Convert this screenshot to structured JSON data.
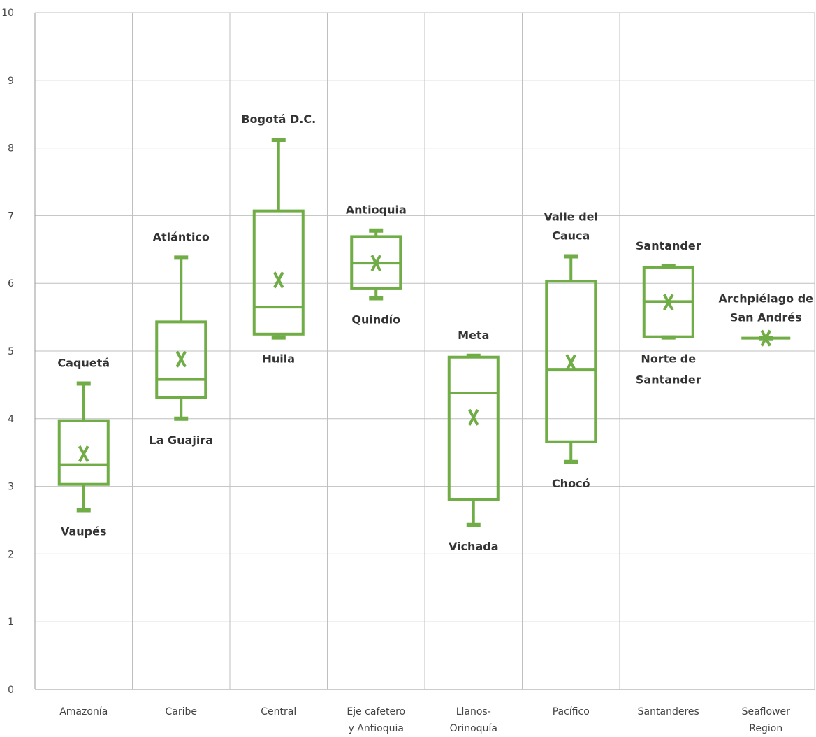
{
  "chart_data": {
    "type": "box",
    "color": "#70ad47",
    "grid_color": "#bfbfbf",
    "ylim": [
      0,
      10
    ],
    "y_ticks": [
      "0",
      "1",
      "2",
      "3",
      "4",
      "5",
      "6",
      "7",
      "8",
      "9",
      "10"
    ],
    "grid": true,
    "legend": "none",
    "categories": [
      [
        "Amazonía"
      ],
      [
        "Caribe"
      ],
      [
        "Central"
      ],
      [
        "Eje cafetero",
        "y Antioquia"
      ],
      [
        "Llanos-",
        "Orinoquía"
      ],
      [
        "Pacífico"
      ],
      [
        "Santanderes"
      ],
      [
        "Seaflower",
        "Region"
      ]
    ],
    "boxes": [
      {
        "min": 2.65,
        "q1": 3.03,
        "median": 3.32,
        "q3": 3.97,
        "max": 4.52,
        "mean": 3.48,
        "max_label": [
          "Caquetá"
        ],
        "min_label": [
          "Vaupés"
        ]
      },
      {
        "min": 4.0,
        "q1": 4.31,
        "median": 4.58,
        "q3": 5.43,
        "max": 6.38,
        "mean": 4.88,
        "max_label": [
          "Atlántico"
        ],
        "min_label": [
          "La Guajira"
        ]
      },
      {
        "min": 5.2,
        "q1": 5.25,
        "median": 5.65,
        "q3": 7.07,
        "max": 8.12,
        "mean": 6.05,
        "max_label": [
          "Bogotá D.C."
        ],
        "min_label": [
          "Huila"
        ]
      },
      {
        "min": 5.78,
        "q1": 5.92,
        "median": 6.3,
        "q3": 6.69,
        "max": 6.78,
        "mean": 6.3,
        "max_label": [
          "Antioquia"
        ],
        "min_label": [
          "Quindío"
        ]
      },
      {
        "min": 2.43,
        "q1": 2.81,
        "median": 4.38,
        "q3": 4.91,
        "max": 4.93,
        "mean": 4.02,
        "max_label": [
          "Meta"
        ],
        "min_label": [
          "Vichada"
        ]
      },
      {
        "min": 3.36,
        "q1": 3.66,
        "median": 4.72,
        "q3": 6.03,
        "max": 6.4,
        "mean": 4.83,
        "max_label": [
          "Valle del",
          "Cauca"
        ],
        "min_label": [
          "Chocó"
        ]
      },
      {
        "min": 5.2,
        "q1": 5.21,
        "median": 5.73,
        "q3": 6.24,
        "max": 6.25,
        "mean": 5.72,
        "max_label": [
          "Santander"
        ],
        "min_label": [
          "Norte de",
          "Santander"
        ]
      },
      {
        "min": 5.19,
        "q1": 5.19,
        "median": 5.19,
        "q3": 5.19,
        "max": 5.19,
        "mean": 5.19,
        "max_label": [
          "Archpiélago de",
          "San Andrés"
        ],
        "min_label": []
      }
    ]
  }
}
